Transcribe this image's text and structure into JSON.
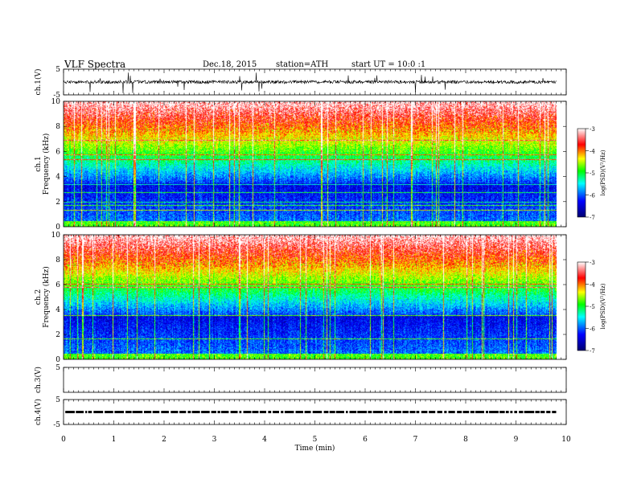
{
  "header": {
    "title": "VLF  Spectra",
    "date": "Dec.18, 2015",
    "station": "station=ATH",
    "start": "start  UT  =    10:0   :1"
  },
  "colors": {
    "spectrogram_scale": [
      "#000070",
      "#0000ff",
      "#00ffff",
      "#00ff00",
      "#ffff00",
      "#ff0000",
      "#ffffff"
    ]
  },
  "chart_data": [
    {
      "type": "line",
      "panel": "ch1-waveform",
      "ylabel": "ch.1(V)",
      "yticks": [
        "5",
        "-5"
      ],
      "ylim": [
        -5,
        5
      ],
      "xlim": [
        0,
        10
      ],
      "series": [
        {
          "x": [
            0,
            9.8
          ],
          "y": [
            0,
            0
          ]
        }
      ]
    },
    {
      "type": "heatmap",
      "panel": "ch1-spectrogram",
      "ylabel_lines": [
        "ch.1",
        "Frequency  (kHz)"
      ],
      "yticks": [
        "0",
        "2",
        "4",
        "6",
        "8",
        "10"
      ],
      "ylim": [
        0,
        10
      ],
      "xlim": [
        0,
        10
      ],
      "data_extent_x": [
        0,
        9.8
      ],
      "colorbar": {
        "label": "log(PSD)(V²/Hz)",
        "ticks": [
          "-3",
          "-4",
          "-5",
          "-6",
          "-7"
        ],
        "range": [
          -7,
          -3
        ]
      }
    },
    {
      "type": "heatmap",
      "panel": "ch2-spectrogram",
      "ylabel_lines": [
        "ch.2",
        "Frequency  (kHz)"
      ],
      "yticks": [
        "0",
        "2",
        "4",
        "6",
        "8",
        "10"
      ],
      "ylim": [
        0,
        10
      ],
      "xlim": [
        0,
        10
      ],
      "data_extent_x": [
        0,
        9.8
      ],
      "colorbar": {
        "label": "log(PSD)(V²/Hz)",
        "ticks": [
          "-3",
          "-4",
          "-5",
          "-6",
          "-7"
        ],
        "range": [
          -7,
          -3
        ]
      }
    },
    {
      "type": "line",
      "panel": "ch3-waveform",
      "ylabel": "ch.3(V)",
      "yticks": [
        "5"
      ],
      "ylim": [
        -5,
        5
      ],
      "xlim": [
        0,
        10
      ]
    },
    {
      "type": "line",
      "panel": "ch4-waveform",
      "ylabel": "ch.4(V)",
      "yticks": [
        "5",
        "-5"
      ],
      "ylim": [
        -5,
        5
      ],
      "xlim": [
        0,
        10
      ],
      "series": [
        {
          "x": [
            0,
            9.8
          ],
          "y": [
            0,
            0
          ]
        }
      ]
    }
  ],
  "xaxis": {
    "label": "Time  (min)",
    "ticks": [
      "0",
      "1",
      "2",
      "3",
      "4",
      "5",
      "6",
      "7",
      "8",
      "9",
      "10"
    ],
    "range": [
      0,
      10
    ]
  }
}
